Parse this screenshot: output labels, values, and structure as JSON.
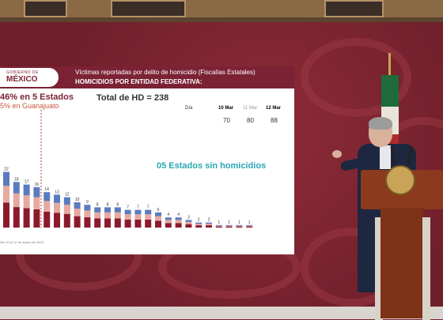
{
  "scene": "Press conference podium beside presentation screen",
  "screen": {
    "logo_top": "GOBIERNO DE",
    "logo_main": "MÉXICO",
    "header_line1": "Víctimas reportadas por delito de homicidio (Fiscalías Estatales)",
    "header_line2": "HOMICIDIOS POR ENTIDAD FEDERATIVA:",
    "pct_text": "46% en 5 Estados",
    "pct_sub": "5% en Guanajuato",
    "total_text": "Total de HD = 238",
    "dia_label": "Día",
    "dates": [
      {
        "label": "10 Mar",
        "value": "70",
        "color": "#333333"
      },
      {
        "label": "11 Mar",
        "value": "80",
        "color": "#999999"
      },
      {
        "label": "12 Mar",
        "value": "88",
        "color": "#333333"
      }
    ],
    "no_homicide_text": "05 Estados sin homicidios",
    "footnote": "Del 10 al 12 de marzo de 2023."
  },
  "chart_data": {
    "type": "bar",
    "categories": [
      "",
      "",
      "",
      "",
      "",
      "",
      "",
      "",
      "",
      "",
      "",
      "",
      "",
      "",
      "",
      "",
      "",
      "",
      "",
      "",
      "",
      "",
      "",
      "",
      ""
    ],
    "totals": [
      22,
      18,
      17,
      16,
      14,
      13,
      12,
      10,
      9,
      8,
      8,
      8,
      7,
      7,
      7,
      6,
      4,
      4,
      3,
      2,
      2,
      1,
      1,
      1,
      1
    ],
    "segment_colors": [
      "#8b1a2c",
      "#e6a9a0",
      "#5b7bbf"
    ],
    "visible_labels": [
      "22",
      "18",
      "17",
      "16",
      "14",
      "13",
      "12",
      "10",
      "9",
      "8",
      "8",
      "8",
      "7",
      "7",
      "7",
      "6",
      "4",
      "4",
      "3",
      "2",
      "2",
      "1",
      "1",
      "1",
      "1"
    ]
  },
  "colors": {
    "header": "#7b2235",
    "accent_teal": "#2aa6b4",
    "backdrop": "#7a2430"
  }
}
